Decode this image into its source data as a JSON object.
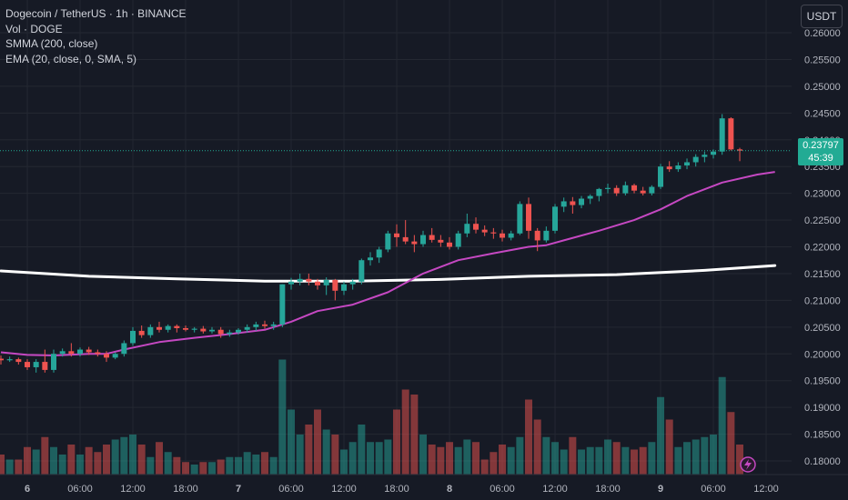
{
  "legend": {
    "symbol": "Dogecoin / TetherUS · 1h · BINANCE",
    "volume": "Vol · DOGE",
    "smma": "SMMA (200, close)",
    "ema": "EMA (20, close, 0, SMA, 5)"
  },
  "currency_button": "USDT",
  "last_price": {
    "price": "0.23797",
    "countdown": "45:39"
  },
  "colors": {
    "background": "#161a25",
    "grid": "#242832",
    "up": "#26a69a",
    "down": "#ef5350",
    "smma": "#ffffff",
    "ema": "#c548c2",
    "last_price_line": "#22ab94"
  },
  "chart_data": {
    "type": "candlestick",
    "y_axis": {
      "ylim": [
        0.1775,
        0.2613
      ],
      "ticks": [
        "0.18000",
        "0.18500",
        "0.19000",
        "0.19500",
        "0.20000",
        "0.20500",
        "0.21000",
        "0.21500",
        "0.22000",
        "0.22500",
        "0.23000",
        "0.23500",
        "0.24000",
        "0.24500",
        "0.25000",
        "0.25500",
        "0.26000"
      ]
    },
    "x_axis": {
      "ticks": [
        {
          "index": 3,
          "label": "6",
          "bold": true
        },
        {
          "index": 9,
          "label": "06:00"
        },
        {
          "index": 15,
          "label": "12:00"
        },
        {
          "index": 21,
          "label": "18:00"
        },
        {
          "index": 27,
          "label": "7",
          "bold": true
        },
        {
          "index": 33,
          "label": "06:00"
        },
        {
          "index": 39,
          "label": "12:00"
        },
        {
          "index": 45,
          "label": "18:00"
        },
        {
          "index": 51,
          "label": "8",
          "bold": true
        },
        {
          "index": 57,
          "label": "06:00"
        },
        {
          "index": 63,
          "label": "12:00"
        },
        {
          "index": 69,
          "label": "18:00"
        },
        {
          "index": 75,
          "label": "9",
          "bold": true
        },
        {
          "index": 81,
          "label": "06:00"
        },
        {
          "index": 87,
          "label": "12:00"
        }
      ]
    },
    "candles": [
      [
        0.1991,
        0.1997,
        0.198,
        0.1988
      ],
      [
        0.1988,
        0.1995,
        0.1985,
        0.199
      ],
      [
        0.199,
        0.1993,
        0.198,
        0.1985
      ],
      [
        0.1985,
        0.199,
        0.197,
        0.1975
      ],
      [
        0.1975,
        0.199,
        0.1965,
        0.1985
      ],
      [
        0.1985,
        0.2008,
        0.1965,
        0.197
      ],
      [
        0.197,
        0.2008,
        0.1965,
        0.2
      ],
      [
        0.2,
        0.201,
        0.1995,
        0.2005
      ],
      [
        0.2005,
        0.202,
        0.1995,
        0.2
      ],
      [
        0.2,
        0.2012,
        0.1995,
        0.2008
      ],
      [
        0.2008,
        0.2013,
        0.1998,
        0.2003
      ],
      [
        0.2003,
        0.2008,
        0.1995,
        0.2
      ],
      [
        0.2,
        0.2005,
        0.1985,
        0.1993
      ],
      [
        0.1993,
        0.2003,
        0.199,
        0.2
      ],
      [
        0.2,
        0.2025,
        0.1995,
        0.202
      ],
      [
        0.202,
        0.205,
        0.2015,
        0.2043
      ],
      [
        0.2043,
        0.2053,
        0.203,
        0.2035
      ],
      [
        0.2035,
        0.2055,
        0.203,
        0.205
      ],
      [
        0.205,
        0.206,
        0.204,
        0.2045
      ],
      [
        0.2045,
        0.2055,
        0.204,
        0.2052
      ],
      [
        0.2052,
        0.2055,
        0.204,
        0.2048
      ],
      [
        0.2048,
        0.2053,
        0.2042,
        0.2045
      ],
      [
        0.2045,
        0.205,
        0.204,
        0.2047
      ],
      [
        0.2047,
        0.2052,
        0.2038,
        0.2042
      ],
      [
        0.2042,
        0.205,
        0.2038,
        0.2045
      ],
      [
        0.2045,
        0.205,
        0.203,
        0.2037
      ],
      [
        0.2037,
        0.2045,
        0.2032,
        0.204
      ],
      [
        0.204,
        0.2048,
        0.2036,
        0.2045
      ],
      [
        0.2045,
        0.2055,
        0.204,
        0.205
      ],
      [
        0.205,
        0.206,
        0.2043,
        0.2055
      ],
      [
        0.2055,
        0.2062,
        0.2047,
        0.2052
      ],
      [
        0.2052,
        0.206,
        0.2045,
        0.2055
      ],
      [
        0.2055,
        0.213,
        0.205,
        0.213
      ],
      [
        0.213,
        0.2142,
        0.212,
        0.2135
      ],
      [
        0.2135,
        0.215,
        0.2128,
        0.214
      ],
      [
        0.214,
        0.215,
        0.2128,
        0.2135
      ],
      [
        0.2135,
        0.214,
        0.212,
        0.2128
      ],
      [
        0.2128,
        0.2143,
        0.211,
        0.2138
      ],
      [
        0.2138,
        0.214,
        0.21,
        0.2118
      ],
      [
        0.2118,
        0.2135,
        0.211,
        0.213
      ],
      [
        0.213,
        0.214,
        0.212,
        0.2135
      ],
      [
        0.2135,
        0.2178,
        0.213,
        0.2175
      ],
      [
        0.2175,
        0.219,
        0.2165,
        0.218
      ],
      [
        0.218,
        0.22,
        0.217,
        0.2195
      ],
      [
        0.2195,
        0.223,
        0.219,
        0.2225
      ],
      [
        0.2225,
        0.2242,
        0.22,
        0.2218
      ],
      [
        0.2218,
        0.225,
        0.2205,
        0.221
      ],
      [
        0.221,
        0.2222,
        0.219,
        0.2205
      ],
      [
        0.2205,
        0.223,
        0.22,
        0.2222
      ],
      [
        0.2222,
        0.2235,
        0.2208,
        0.2213
      ],
      [
        0.2213,
        0.2222,
        0.22,
        0.2208
      ],
      [
        0.2208,
        0.2218,
        0.2195,
        0.22
      ],
      [
        0.22,
        0.223,
        0.2195,
        0.2225
      ],
      [
        0.2225,
        0.2262,
        0.2218,
        0.2243
      ],
      [
        0.2243,
        0.2255,
        0.2225,
        0.2232
      ],
      [
        0.2232,
        0.224,
        0.222,
        0.2227
      ],
      [
        0.2227,
        0.2235,
        0.2215,
        0.2225
      ],
      [
        0.2225,
        0.2232,
        0.221,
        0.2217
      ],
      [
        0.2217,
        0.223,
        0.2212,
        0.2225
      ],
      [
        0.2225,
        0.2285,
        0.2222,
        0.228
      ],
      [
        0.228,
        0.2292,
        0.2215,
        0.223
      ],
      [
        0.223,
        0.2235,
        0.2192,
        0.2212
      ],
      [
        0.2212,
        0.2238,
        0.2208,
        0.223
      ],
      [
        0.223,
        0.228,
        0.2225,
        0.2275
      ],
      [
        0.2275,
        0.2292,
        0.2265,
        0.2285
      ],
      [
        0.2285,
        0.2293,
        0.2262,
        0.2278
      ],
      [
        0.2278,
        0.2295,
        0.2272,
        0.229
      ],
      [
        0.229,
        0.2298,
        0.228,
        0.2295
      ],
      [
        0.2295,
        0.231,
        0.2285,
        0.2308
      ],
      [
        0.2308,
        0.2318,
        0.23,
        0.231
      ],
      [
        0.231,
        0.2315,
        0.2295,
        0.23
      ],
      [
        0.23,
        0.2322,
        0.2296,
        0.2315
      ],
      [
        0.2315,
        0.2318,
        0.23,
        0.2305
      ],
      [
        0.2305,
        0.2312,
        0.2296,
        0.23
      ],
      [
        0.23,
        0.2315,
        0.2296,
        0.2312
      ],
      [
        0.2312,
        0.2355,
        0.2308,
        0.235
      ],
      [
        0.235,
        0.236,
        0.234,
        0.2345
      ],
      [
        0.2345,
        0.2358,
        0.234,
        0.2352
      ],
      [
        0.2352,
        0.2365,
        0.2345,
        0.2358
      ],
      [
        0.2358,
        0.2373,
        0.235,
        0.2368
      ],
      [
        0.2368,
        0.2378,
        0.2358,
        0.2372
      ],
      [
        0.2372,
        0.2382,
        0.2365,
        0.2378
      ],
      [
        0.2378,
        0.2448,
        0.2372,
        0.244
      ],
      [
        0.244,
        0.2442,
        0.238,
        0.2382
      ],
      [
        0.2382,
        0.2385,
        0.236,
        0.23797
      ]
    ],
    "volume": [
      4.0,
      3.0,
      3.0,
      5.5,
      5.0,
      7.5,
      5.5,
      4.0,
      6.0,
      4.0,
      5.5,
      4.5,
      6.0,
      7.0,
      7.5,
      8.0,
      6.0,
      3.5,
      6.5,
      4.5,
      3.5,
      2.5,
      2.0,
      2.5,
      2.5,
      3.0,
      3.5,
      3.5,
      4.5,
      4.0,
      4.5,
      3.5,
      23.0,
      13.0,
      8.0,
      10.0,
      13.0,
      9.0,
      8.0,
      5.0,
      6.5,
      10.0,
      6.5,
      6.5,
      7.0,
      13.0,
      17.0,
      16.0,
      8.0,
      6.0,
      5.5,
      6.5,
      5.5,
      7.0,
      6.5,
      3.0,
      4.5,
      6.0,
      5.5,
      7.5,
      15.0,
      11.0,
      7.5,
      6.5,
      5.0,
      7.5,
      5.0,
      5.5,
      5.5,
      7.0,
      6.5,
      5.5,
      5.0,
      5.5,
      6.5,
      15.5,
      11.0,
      5.5,
      6.5,
      7.0,
      7.5,
      8.0,
      19.5,
      12.5,
      6.0
    ],
    "smma": [
      [
        0,
        0.2155
      ],
      [
        10,
        0.2145
      ],
      [
        20,
        0.214
      ],
      [
        30,
        0.2136
      ],
      [
        40,
        0.2136
      ],
      [
        50,
        0.2139
      ],
      [
        60,
        0.2145
      ],
      [
        70,
        0.2148
      ],
      [
        80,
        0.2156
      ],
      [
        88,
        0.2165
      ]
    ],
    "ema": [
      [
        0,
        0.2003
      ],
      [
        3,
        0.1998
      ],
      [
        6,
        0.1997
      ],
      [
        10,
        0.2
      ],
      [
        12,
        0.2
      ],
      [
        14,
        0.2008
      ],
      [
        18,
        0.2022
      ],
      [
        22,
        0.203
      ],
      [
        26,
        0.2037
      ],
      [
        30,
        0.2045
      ],
      [
        33,
        0.206
      ],
      [
        36,
        0.208
      ],
      [
        40,
        0.2092
      ],
      [
        44,
        0.2115
      ],
      [
        48,
        0.215
      ],
      [
        52,
        0.2175
      ],
      [
        56,
        0.2188
      ],
      [
        60,
        0.22
      ],
      [
        62,
        0.2203
      ],
      [
        64,
        0.2212
      ],
      [
        68,
        0.223
      ],
      [
        72,
        0.225
      ],
      [
        75,
        0.227
      ],
      [
        78,
        0.2295
      ],
      [
        82,
        0.232
      ],
      [
        86,
        0.2335
      ],
      [
        88,
        0.234
      ]
    ]
  }
}
